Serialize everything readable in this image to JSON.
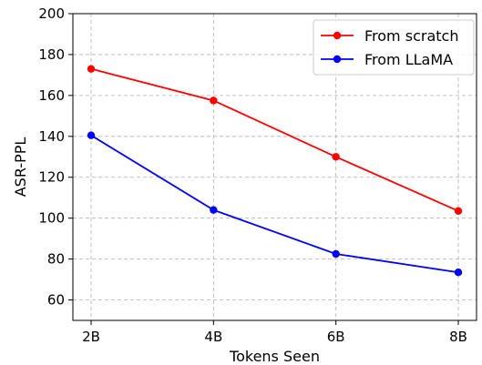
{
  "chart_data": {
    "type": "line",
    "categories": [
      "2B",
      "4B",
      "6B",
      "8B"
    ],
    "xlabel": "Tokens Seen",
    "ylabel": "ASR-PPL",
    "ylim": [
      50,
      200
    ],
    "yticks": [
      60,
      80,
      100,
      120,
      140,
      160,
      180,
      200
    ],
    "grid": true,
    "legend_position": "top-right",
    "series": [
      {
        "name": "From scratch",
        "color": "#ff0000",
        "values": [
          173,
          157.5,
          130,
          103.5
        ]
      },
      {
        "name": "From LLaMA",
        "color": "#0000ff",
        "values": [
          140.5,
          104,
          82.5,
          73.5
        ]
      }
    ]
  }
}
